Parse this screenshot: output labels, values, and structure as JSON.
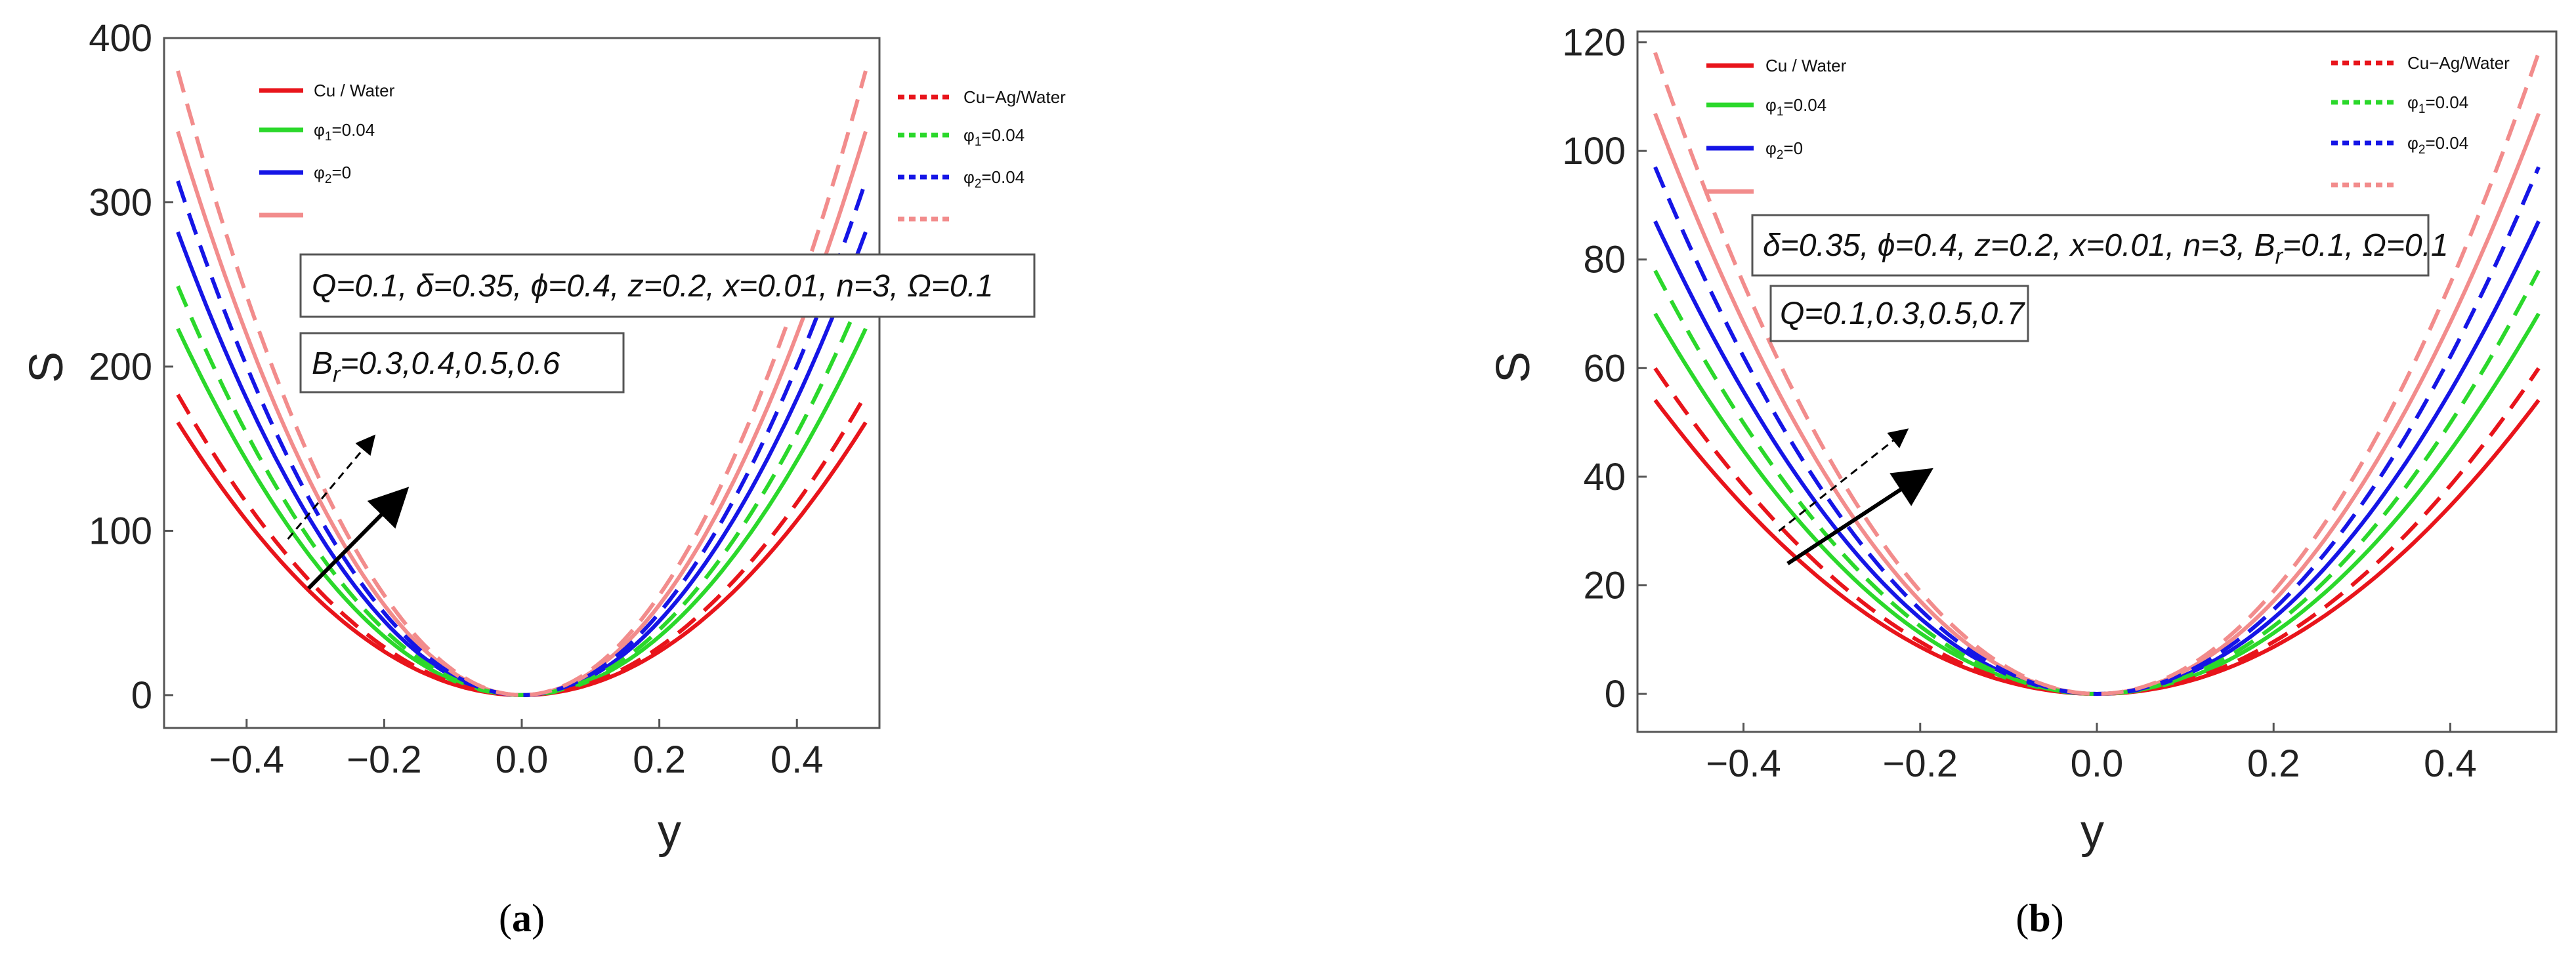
{
  "chart_data": [
    {
      "type": "line",
      "panel": "a",
      "caption_letter": "a",
      "xlabel": "y",
      "ylabel": "S",
      "xlim": [
        -0.52,
        0.52
      ],
      "ylim": [
        -20,
        400
      ],
      "x_ticks": [
        -0.4,
        -0.2,
        0.0,
        0.2,
        0.4
      ],
      "x_tick_labels": [
        "−0.4",
        "−0.2",
        "0.0",
        "0.2",
        "0.4"
      ],
      "y_ticks": [
        0,
        100,
        200,
        300,
        400
      ],
      "y_tick_labels": [
        "0",
        "100",
        "200",
        "300",
        "400"
      ],
      "x": [
        -0.5,
        -0.4,
        -0.3,
        -0.2,
        -0.1,
        0.0,
        0.1,
        0.2,
        0.3,
        0.4,
        0.5
      ],
      "series": [
        {
          "name": "Cu / Water",
          "color": "#e8141b",
          "style": "solid",
          "values": [
            166,
            106,
            60,
            27,
            7,
            0,
            7,
            27,
            60,
            106,
            166
          ]
        },
        {
          "name": "φ1=0.04",
          "color": "#2bd82b",
          "style": "solid",
          "values": [
            223,
            143,
            80,
            36,
            9,
            0,
            9,
            36,
            80,
            143,
            223
          ]
        },
        {
          "name": "φ2=0",
          "color": "#1515e6",
          "style": "solid",
          "values": [
            282,
            180,
            102,
            45,
            11,
            0,
            11,
            45,
            102,
            180,
            282
          ]
        },
        {
          "name": "",
          "color": "#f28c8c",
          "style": "solid",
          "values": [
            343,
            220,
            123,
            55,
            14,
            0,
            14,
            55,
            123,
            220,
            343
          ]
        },
        {
          "name": "Cu−Ag/Water",
          "color": "#e8141b",
          "style": "dashed",
          "values": [
            183,
            117,
            66,
            29,
            7,
            0,
            7,
            29,
            66,
            117,
            183
          ]
        },
        {
          "name": "φ1=0.04",
          "color": "#2bd82b",
          "style": "dashed",
          "values": [
            249,
            159,
            90,
            40,
            10,
            0,
            10,
            40,
            90,
            159,
            249
          ]
        },
        {
          "name": "φ2=0.04",
          "color": "#1515e6",
          "style": "dashed",
          "values": [
            313,
            200,
            113,
            50,
            13,
            0,
            13,
            50,
            113,
            200,
            313
          ]
        },
        {
          "name": "",
          "color": "#f28c8c",
          "style": "dashed",
          "values": [
            380,
            243,
            137,
            61,
            15,
            0,
            15,
            61,
            137,
            243,
            380
          ]
        }
      ],
      "legend_left": [
        {
          "label": "Cu / Water",
          "main": "Cu / Water",
          "sub": "",
          "tail": ""
        },
        {
          "label": "φ1=0.04",
          "main": "φ",
          "sub": "1",
          "tail": "=0.04"
        },
        {
          "label": "φ2=0",
          "main": "φ",
          "sub": "2",
          "tail": "=0"
        },
        {
          "label": "",
          "main": "",
          "sub": "",
          "tail": ""
        }
      ],
      "legend_right": [
        {
          "label": "Cu−Ag/Water",
          "main": "Cu−Ag/Water",
          "sub": "",
          "tail": ""
        },
        {
          "label": "φ1=0.04",
          "main": "φ",
          "sub": "1",
          "tail": "=0.04"
        },
        {
          "label": "φ2=0.04",
          "main": "φ",
          "sub": "2",
          "tail": "=0.04"
        },
        {
          "label": "",
          "main": "",
          "sub": "",
          "tail": ""
        }
      ],
      "annotations": [
        {
          "text": "Q=0.1, δ=0.35, ϕ=0.4, z=0.2, x=0.01, n=3, Ω=0.1",
          "main": "Q=0.1, δ=0.35, ϕ=0.4, z=0.2, x=0.01, n=3, Ω=0.1",
          "sub": "",
          "tail": ""
        },
        {
          "text": "Br=0.3,0.4,0.5,0.6",
          "main": "B",
          "sub": "r",
          "tail": "=0.3,0.4,0.5,0.6"
        }
      ],
      "arrows": [
        {
          "style": "dashed",
          "from": [
            -0.34,
            95
          ],
          "to": [
            -0.22,
            155
          ]
        },
        {
          "style": "solid",
          "from": [
            -0.31,
            65
          ],
          "to": [
            -0.18,
            120
          ]
        }
      ]
    },
    {
      "type": "line",
      "panel": "b",
      "caption_letter": "b",
      "xlabel": "y",
      "ylabel": "S",
      "xlim": [
        -0.52,
        0.52
      ],
      "ylim": [
        -7,
        122
      ],
      "x_ticks": [
        -0.4,
        -0.2,
        0.0,
        0.2,
        0.4
      ],
      "x_tick_labels": [
        "−0.4",
        "−0.2",
        "0.0",
        "0.2",
        "0.4"
      ],
      "y_ticks": [
        0,
        20,
        40,
        60,
        80,
        100,
        120
      ],
      "y_tick_labels": [
        "0",
        "20",
        "40",
        "60",
        "80",
        "100",
        "120"
      ],
      "x": [
        -0.5,
        -0.4,
        -0.3,
        -0.2,
        -0.1,
        0.0,
        0.1,
        0.2,
        0.3,
        0.4,
        0.5
      ],
      "series": [
        {
          "name": "Cu / Water",
          "color": "#e8141b",
          "style": "solid",
          "values": [
            54,
            35,
            19,
            9,
            2,
            0,
            2,
            9,
            19,
            35,
            54
          ]
        },
        {
          "name": "φ1=0.04",
          "color": "#2bd82b",
          "style": "solid",
          "values": [
            70,
            45,
            25,
            11,
            3,
            0,
            3,
            11,
            25,
            45,
            70
          ]
        },
        {
          "name": "φ2=0",
          "color": "#1515e6",
          "style": "solid",
          "values": [
            87,
            56,
            31,
            14,
            3,
            0,
            3,
            14,
            31,
            56,
            87
          ]
        },
        {
          "name": "",
          "color": "#f28c8c",
          "style": "solid",
          "values": [
            107,
            68,
            39,
            17,
            4,
            0,
            4,
            17,
            39,
            68,
            107
          ]
        },
        {
          "name": "Cu−Ag/Water",
          "color": "#e8141b",
          "style": "dashed",
          "values": [
            60,
            38,
            22,
            10,
            2,
            0,
            2,
            10,
            22,
            38,
            60
          ]
        },
        {
          "name": "φ1=0.04",
          "color": "#2bd82b",
          "style": "dashed",
          "values": [
            78,
            50,
            28,
            12,
            3,
            0,
            3,
            12,
            28,
            50,
            78
          ]
        },
        {
          "name": "φ2=0.04",
          "color": "#1515e6",
          "style": "dashed",
          "values": [
            97,
            62,
            35,
            16,
            4,
            0,
            4,
            16,
            35,
            62,
            97
          ]
        },
        {
          "name": "",
          "color": "#f28c8c",
          "style": "dashed",
          "values": [
            118,
            76,
            42,
            19,
            5,
            0,
            5,
            19,
            42,
            76,
            118
          ]
        }
      ],
      "legend_left": [
        {
          "label": "Cu / Water",
          "main": "Cu / Water",
          "sub": "",
          "tail": ""
        },
        {
          "label": "φ1=0.04",
          "main": "φ",
          "sub": "1",
          "tail": "=0.04"
        },
        {
          "label": "φ2=0",
          "main": "φ",
          "sub": "2",
          "tail": "=0"
        },
        {
          "label": "",
          "main": "",
          "sub": "",
          "tail": ""
        }
      ],
      "legend_right": [
        {
          "label": "Cu−Ag/Water",
          "main": "Cu−Ag/Water",
          "sub": "",
          "tail": ""
        },
        {
          "label": "φ1=0.04",
          "main": "φ",
          "sub": "1",
          "tail": "=0.04"
        },
        {
          "label": "φ2=0.04",
          "main": "φ",
          "sub": "2",
          "tail": "=0.04"
        },
        {
          "label": "",
          "main": "",
          "sub": "",
          "tail": ""
        }
      ],
      "annotations": [
        {
          "text": "δ=0.35, ϕ=0.4, z=0.2, x=0.01, n=3, Br=0.1, Ω=0.1",
          "main": "δ=0.35, ϕ=0.4, z=0.2, x=0.01, n=3, B",
          "sub": "r",
          "tail": "=0.1, Ω=0.1"
        },
        {
          "text": "Q=0.1,0.3,0.5,0.7",
          "main": "Q=0.1,0.3,0.5,0.7",
          "sub": "",
          "tail": ""
        }
      ],
      "arrows": [
        {
          "style": "dashed",
          "from": [
            -0.36,
            30
          ],
          "to": [
            -0.22,
            48
          ]
        },
        {
          "style": "solid",
          "from": [
            -0.35,
            24
          ],
          "to": [
            -0.2,
            40
          ]
        }
      ]
    }
  ]
}
